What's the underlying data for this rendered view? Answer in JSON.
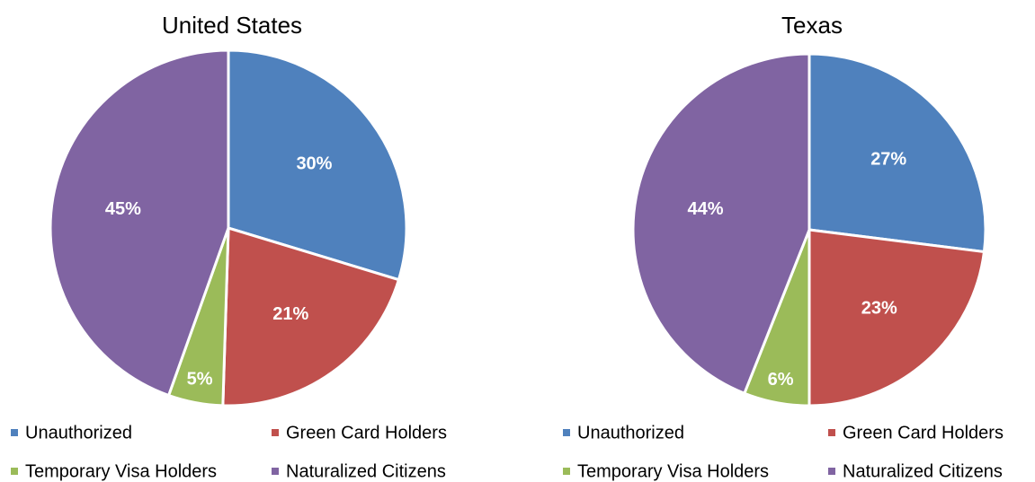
{
  "chart_data": [
    {
      "type": "pie",
      "title": "United States",
      "categories": [
        "Unauthorized",
        "Green Card Holders",
        "Temporary Visa Holders",
        "Naturalized Citizens"
      ],
      "values": [
        30,
        21,
        5,
        45
      ],
      "value_labels": [
        "30%",
        "21%",
        "5%",
        "45%"
      ],
      "colors": [
        "#4F81BD",
        "#C0504D",
        "#9BBB59",
        "#8064A2"
      ]
    },
    {
      "type": "pie",
      "title": "Texas",
      "categories": [
        "Unauthorized",
        "Green Card Holders",
        "Temporary Visa Holders",
        "Naturalized Citizens"
      ],
      "values": [
        27,
        23,
        6,
        44
      ],
      "value_labels": [
        "27%",
        "23%",
        "6%",
        "44%"
      ],
      "colors": [
        "#4F81BD",
        "#C0504D",
        "#9BBB59",
        "#8064A2"
      ]
    }
  ]
}
